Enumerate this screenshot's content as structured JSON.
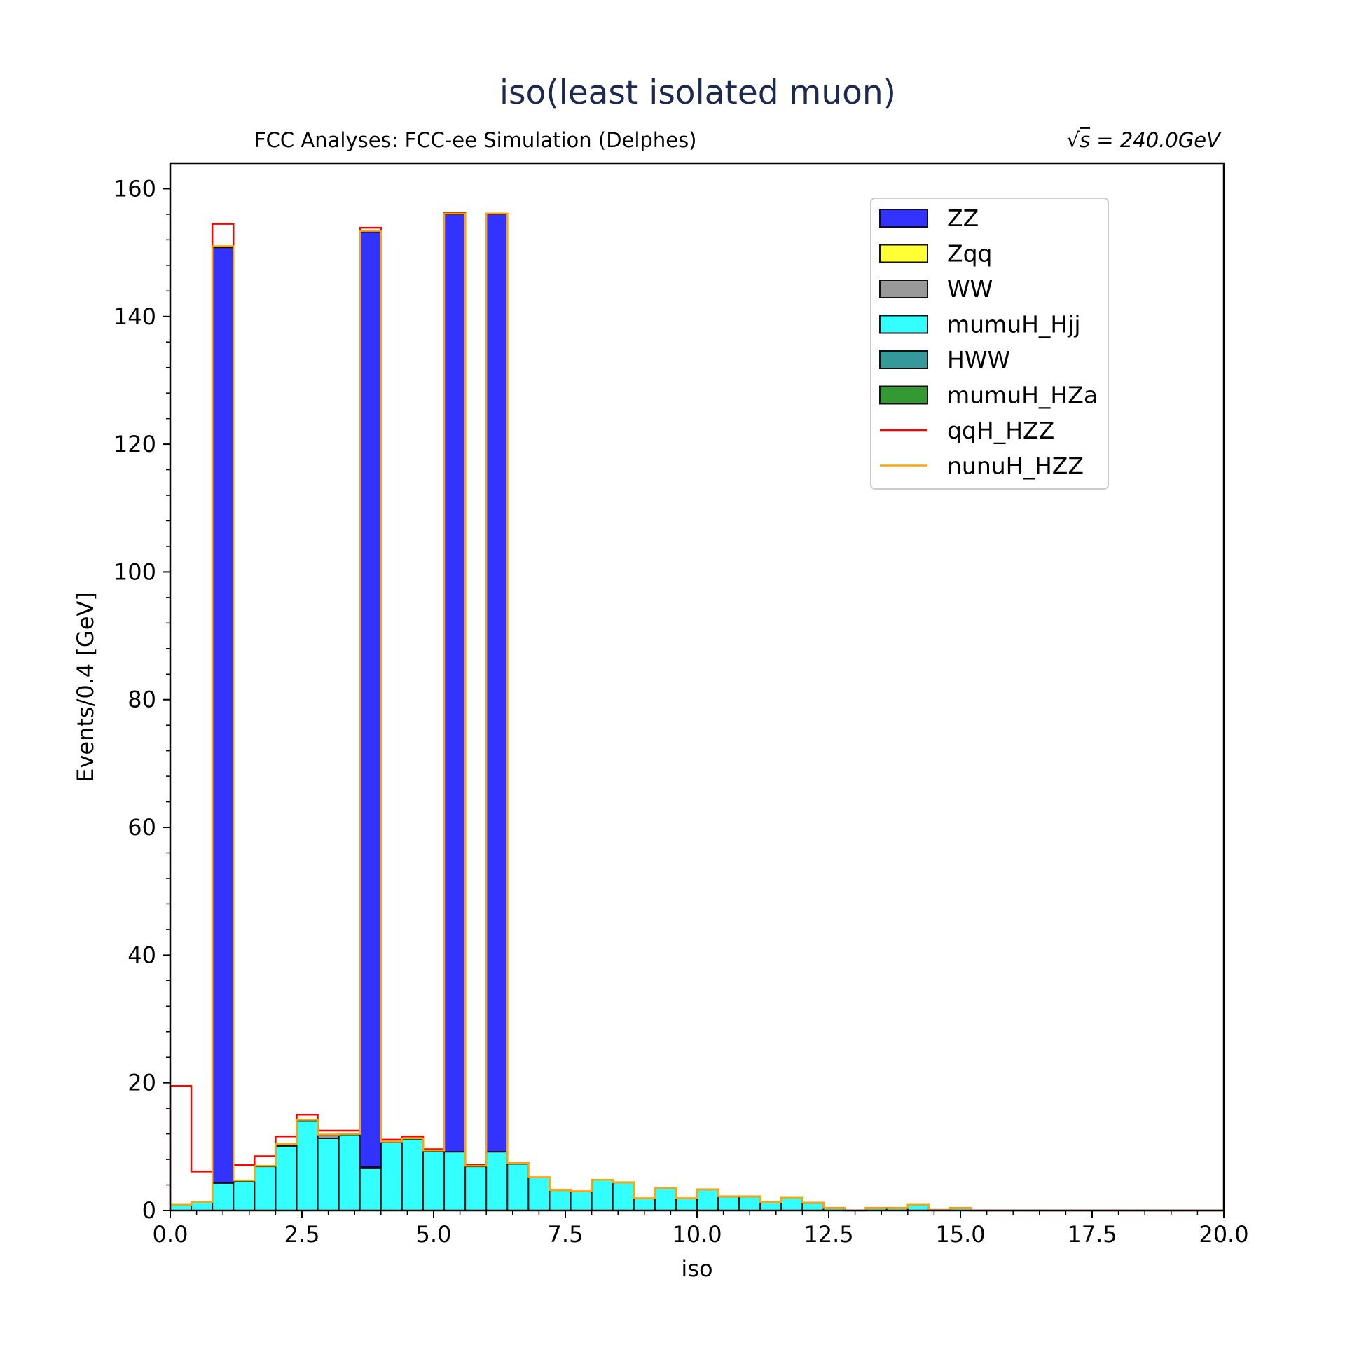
{
  "chart_data": {
    "type": "bar",
    "histtype": "stacked-step",
    "title": "iso(least isolated muon)",
    "subtitle_left": "FCC Analyses: FCC-ee Simulation (Delphes)",
    "subtitle_right_prefix": "√",
    "subtitle_right_var": "s",
    "subtitle_right_rest": " = 240.0GeV",
    "xlabel": "iso",
    "ylabel": "Events/0.4 [GeV]",
    "xlim": [
      0,
      20
    ],
    "ylim": [
      0,
      164
    ],
    "bin_width": 0.4,
    "bin_edges_start": 0,
    "xticks": [
      "0.0",
      "2.5",
      "5.0",
      "7.5",
      "10.0",
      "12.5",
      "15.0",
      "17.5",
      "20.0"
    ],
    "yticks": [
      "0",
      "20",
      "40",
      "60",
      "80",
      "100",
      "120",
      "140",
      "160"
    ],
    "legend_position": "upper-right",
    "colors": {
      "ZZ": "#3333ff",
      "Zqq": "#ffff33",
      "WW": "#999999",
      "mumuH_Hjj": "#33ffff",
      "HWW": "#339999",
      "mumuH_HZa": "#339933",
      "qqH_HZZ": "#ff0000",
      "nunuH_HZZ": "#ffa500"
    },
    "series": [
      {
        "name": "ZZ",
        "kind": "filled",
        "values": [
          0,
          0,
          146.5,
          0,
          0,
          0,
          0,
          0,
          0,
          146.5,
          0,
          0,
          0,
          146.8,
          0,
          146.8,
          0,
          0,
          0,
          0,
          0,
          0,
          0,
          0,
          0,
          0,
          0,
          0,
          0,
          0,
          0,
          0,
          0,
          0,
          0,
          0,
          0,
          0,
          0,
          0,
          0,
          0,
          0,
          0,
          0,
          0,
          0,
          0,
          0,
          0
        ]
      },
      {
        "name": "Zqq",
        "kind": "filled",
        "values": [
          0,
          0,
          0,
          0,
          0,
          0,
          0,
          0,
          0,
          0,
          0,
          0,
          0,
          0,
          0,
          0,
          0,
          0,
          0,
          0,
          0,
          0,
          0,
          0,
          0,
          0,
          0,
          0,
          0,
          0,
          0,
          0,
          0,
          0,
          0,
          0,
          0,
          0,
          0,
          0,
          0,
          0,
          0,
          0,
          0,
          0,
          0,
          0,
          0,
          0
        ]
      },
      {
        "name": "WW",
        "kind": "filled",
        "values": [
          0,
          0,
          0,
          0,
          0,
          0.2,
          0,
          0.5,
          0,
          0.2,
          0,
          0,
          0,
          0,
          0,
          0,
          0,
          0,
          0,
          0,
          0,
          0,
          0,
          0,
          0,
          0,
          0,
          0,
          0,
          0,
          0,
          0,
          0,
          0,
          0,
          0,
          0,
          0,
          0,
          0,
          0,
          0,
          0,
          0,
          0,
          0,
          0,
          0,
          0,
          0
        ]
      },
      {
        "name": "mumuH_Hjj",
        "kind": "filled",
        "values": [
          0.9,
          1.3,
          4.3,
          4.6,
          6.9,
          10.1,
          14.1,
          11.3,
          11.9,
          6.6,
          10.7,
          11.2,
          9.3,
          9.2,
          6.9,
          9.2,
          7.3,
          5.2,
          3.2,
          3.0,
          4.8,
          4.4,
          1.9,
          3.5,
          1.9,
          3.3,
          2.2,
          2.2,
          1.3,
          2.0,
          1.2,
          0.4,
          0,
          0.4,
          0.4,
          0.9,
          0.1,
          0.4,
          0,
          0,
          0,
          0,
          0,
          0,
          0,
          0,
          0,
          0,
          0,
          0
        ]
      },
      {
        "name": "HWW",
        "kind": "filled",
        "values": [
          0,
          0,
          0,
          0,
          0,
          0,
          0,
          0,
          0,
          0,
          0,
          0,
          0,
          0,
          0,
          0,
          0,
          0,
          0,
          0,
          0,
          0,
          0,
          0,
          0,
          0,
          0,
          0,
          0,
          0,
          0,
          0,
          0,
          0,
          0,
          0,
          0,
          0,
          0,
          0,
          0,
          0,
          0,
          0,
          0,
          0,
          0,
          0,
          0,
          0
        ]
      },
      {
        "name": "mumuH_HZa",
        "kind": "filled",
        "values": [
          0,
          0,
          0,
          0,
          0,
          0,
          0,
          0,
          0,
          0,
          0,
          0,
          0,
          0,
          0,
          0,
          0,
          0,
          0,
          0,
          0,
          0,
          0,
          0,
          0,
          0,
          0,
          0,
          0,
          0,
          0,
          0,
          0,
          0,
          0,
          0,
          0,
          0,
          0,
          0,
          0,
          0,
          0,
          0,
          0,
          0,
          0,
          0,
          0,
          0
        ]
      },
      {
        "name": "qqH_HZZ",
        "kind": "step",
        "values": [
          18.6,
          4.8,
          3.5,
          2.4,
          1.5,
          1.2,
          0.8,
          0.6,
          0.5,
          0.5,
          0.3,
          0.3,
          0.2,
          0.1,
          0.1,
          0,
          0,
          0,
          0,
          0,
          0,
          0,
          0,
          0,
          0,
          0,
          0,
          0,
          0,
          0,
          0,
          0,
          0,
          0,
          0,
          0,
          0,
          0,
          0,
          0,
          0,
          0,
          0,
          0,
          0,
          0,
          0,
          0,
          0,
          0
        ]
      },
      {
        "name": "nunuH_HZZ",
        "kind": "step",
        "values": [
          0,
          0,
          0.2,
          0.1,
          0.1,
          0.1,
          0.1,
          0.1,
          0.1,
          0.1,
          0.1,
          0.1,
          0.1,
          0.1,
          0.1,
          0.1,
          0.1,
          0,
          0,
          0,
          0,
          0,
          0,
          0,
          0,
          0,
          0,
          0,
          0,
          0,
          0,
          0,
          0,
          0,
          0,
          0,
          0,
          0,
          0,
          0,
          0,
          0,
          0,
          0,
          0,
          0,
          0,
          0,
          0,
          0
        ]
      }
    ]
  }
}
